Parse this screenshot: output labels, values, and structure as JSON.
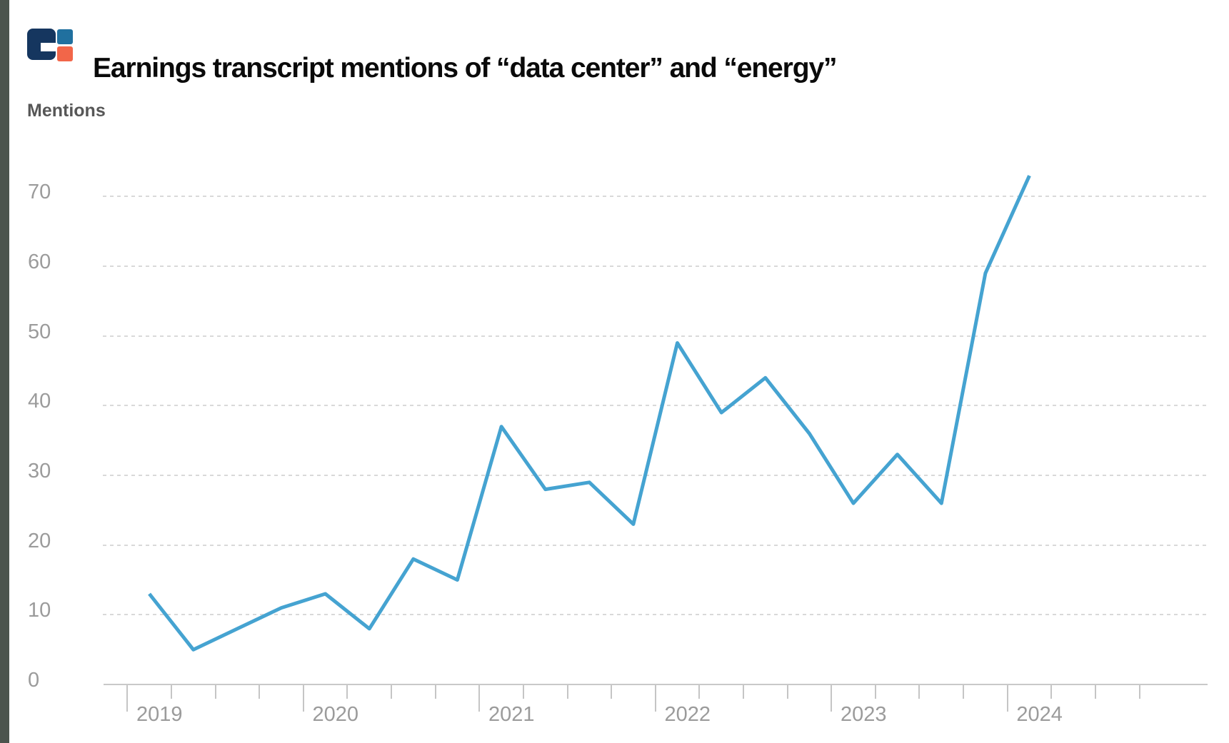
{
  "page": {
    "background": "#ffffff",
    "left_strip_color": "#4b544d"
  },
  "header": {
    "title": "Earnings transcript mentions of “data center” and “energy”",
    "logo": {
      "name": "cb-insights-logo",
      "navy": "#15365f",
      "blue": "#20709f",
      "orange": "#f26649"
    }
  },
  "chart_data": {
    "type": "line",
    "title": "Earnings transcript mentions of “data center” and “energy”",
    "ylabel": "Mentions",
    "xlabel": "",
    "x_unit": "quarter",
    "categories": [
      "2019 Q1",
      "2019 Q2",
      "2019 Q3",
      "2019 Q4",
      "2020 Q1",
      "2020 Q2",
      "2020 Q3",
      "2020 Q4",
      "2021 Q1",
      "2021 Q2",
      "2021 Q3",
      "2021 Q4",
      "2022 Q1",
      "2022 Q2",
      "2022 Q3",
      "2022 Q4",
      "2023 Q1",
      "2023 Q2",
      "2023 Q3",
      "2023 Q4",
      "2024 Q1"
    ],
    "series": [
      {
        "name": "Mentions",
        "color": "#45a3d1",
        "values": [
          13,
          5,
          8,
          11,
          13,
          8,
          18,
          15,
          37,
          28,
          29,
          23,
          49,
          39,
          44,
          36,
          26,
          33,
          26,
          59,
          73
        ]
      }
    ],
    "ylim": [
      0,
      75
    ],
    "y_ticks": [
      0,
      10,
      20,
      30,
      40,
      50,
      60,
      70
    ],
    "x_year_labels": [
      "2019",
      "2020",
      "2021",
      "2022",
      "2023",
      "2024"
    ],
    "x_quarter_ticks_years": 6,
    "grid": "horizontal-dashed",
    "legend": "none",
    "axis_color": "#c9c9c9",
    "grid_color": "#d9d9d9",
    "tick_label_color": "#9b9b9b"
  }
}
